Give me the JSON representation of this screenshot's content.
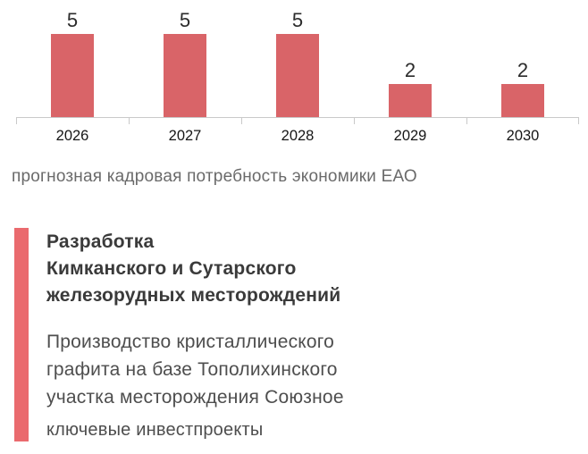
{
  "colors": {
    "bar": "#d96468",
    "accent": "#ea6a6e",
    "axis": "#c9c9c9"
  },
  "chart_data": {
    "type": "bar",
    "categories": [
      "2026",
      "2027",
      "2028",
      "2029",
      "2030"
    ],
    "values": [
      5,
      5,
      5,
      2,
      2
    ],
    "title": "",
    "xlabel": "",
    "ylabel": "",
    "ylim": [
      0,
      5
    ],
    "grid": false,
    "legend": "none",
    "data_labels": [
      5,
      5,
      5,
      2,
      2
    ]
  },
  "caption": "прогнозная кадровая потребность экономики ЕАО",
  "info": {
    "title_lines": [
      "Разработка",
      "Кимканского и Сутарского",
      "железорудных месторождений"
    ],
    "body_lines": [
      "Производство кристаллического",
      "графита на базе Тополихинского",
      "участка месторождения Союзное"
    ],
    "footer": "ключевые инвестпроекты"
  }
}
